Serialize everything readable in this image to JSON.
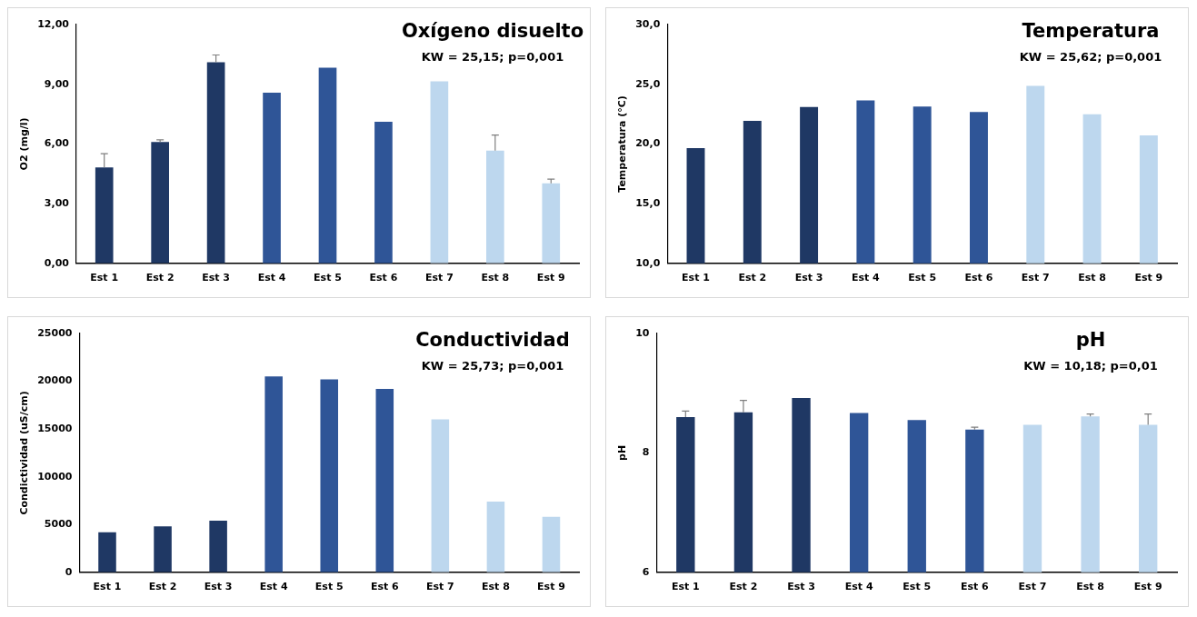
{
  "chart_data": [
    {
      "type": "bar",
      "title": "Oxígeno disuelto",
      "subtitle": "KW = 25,15; p=0,001",
      "ylabel": "O2 (mg/l)",
      "categories": [
        "Est 1",
        "Est 2",
        "Est 3",
        "Est 4",
        "Est 5",
        "Est 6",
        "Est 7",
        "Est 8",
        "Est 9"
      ],
      "values": [
        4.82,
        6.1,
        10.1,
        8.58,
        9.83,
        7.11,
        9.15,
        5.67,
        4.02
      ],
      "errors": [
        [
          4.82,
          5.51
        ],
        [
          6.1,
          6.21
        ],
        [
          10.1,
          10.47
        ],
        null,
        null,
        null,
        null,
        [
          5.67,
          6.45
        ],
        [
          4.02,
          4.23
        ]
      ],
      "colors": [
        "#1f3864",
        "#1f3864",
        "#1f3864",
        "#2f5597",
        "#2f5597",
        "#2f5597",
        "#bdd7ee",
        "#bdd7ee",
        "#bdd7ee"
      ],
      "ylim": [
        0,
        12
      ],
      "yticks": [
        {
          "value": 0,
          "label": "0,00"
        },
        {
          "value": 3,
          "label": "3,00"
        },
        {
          "value": 6,
          "label": "6,00"
        },
        {
          "value": 9,
          "label": "9,00"
        },
        {
          "value": 12,
          "label": "12,00"
        }
      ],
      "grid": false
    },
    {
      "type": "bar",
      "title": "Temperatura",
      "subtitle": "KW = 25,62; p=0,001",
      "ylabel": "Temperatura (°C)",
      "categories": [
        "Est 1",
        "Est 2",
        "Est 3",
        "Est 4",
        "Est 5",
        "Est 6",
        "Est 7",
        "Est 8",
        "Est 9"
      ],
      "values": [
        19.65,
        21.94,
        23.1,
        23.65,
        23.13,
        22.68,
        24.87,
        22.48,
        20.71
      ],
      "colors": [
        "#1f3864",
        "#1f3864",
        "#1f3864",
        "#2f5597",
        "#2f5597",
        "#2f5597",
        "#bdd7ee",
        "#bdd7ee",
        "#bdd7ee"
      ],
      "ylim": [
        10,
        30
      ],
      "yticks": [
        {
          "value": 10,
          "label": "10,0"
        },
        {
          "value": 15,
          "label": "15,0"
        },
        {
          "value": 20,
          "label": "20,0"
        },
        {
          "value": 25,
          "label": "25,0"
        },
        {
          "value": 30,
          "label": "30,0"
        }
      ],
      "grid": false
    },
    {
      "type": "bar",
      "title": "Conductividad",
      "subtitle": "KW = 25,73; p=0,001",
      "ylabel": "Condictividad (uS/cm)",
      "categories": [
        "Est 1",
        "Est 2",
        "Est 3",
        "Est 4",
        "Est 5",
        "Est 6",
        "Est 7",
        "Est 8",
        "Est 9"
      ],
      "values": [
        4200,
        4800,
        5400,
        20500,
        20200,
        19200,
        16000,
        7400,
        5800
      ],
      "colors": [
        "#1f3864",
        "#1f3864",
        "#1f3864",
        "#2f5597",
        "#2f5597",
        "#2f5597",
        "#bdd7ee",
        "#bdd7ee",
        "#bdd7ee"
      ],
      "ylim": [
        0,
        25000
      ],
      "yticks": [
        0,
        5000,
        10000,
        15000,
        20000,
        25000
      ],
      "grid": false
    },
    {
      "type": "bar",
      "title": "pH",
      "subtitle": "KW = 10,18; p=0,01",
      "ylabel": "pH",
      "categories": [
        "Est 1",
        "Est 2",
        "Est 3",
        "Est 4",
        "Est 5",
        "Est 6",
        "Est 7",
        "Est 8",
        "Est 9"
      ],
      "values": [
        8.6,
        8.68,
        8.92,
        8.67,
        8.55,
        8.39,
        8.47,
        8.61,
        8.47
      ],
      "errors": [
        [
          8.6,
          8.7
        ],
        [
          8.68,
          8.88
        ],
        null,
        null,
        null,
        [
          8.39,
          8.43
        ],
        null,
        [
          8.61,
          8.65
        ],
        [
          8.47,
          8.65
        ]
      ],
      "colors": [
        "#1f3864",
        "#1f3864",
        "#1f3864",
        "#2f5597",
        "#2f5597",
        "#2f5597",
        "#bdd7ee",
        "#bdd7ee",
        "#bdd7ee"
      ],
      "ylim": [
        6,
        10
      ],
      "yticks": [
        6,
        8,
        10
      ],
      "grid": false
    }
  ]
}
